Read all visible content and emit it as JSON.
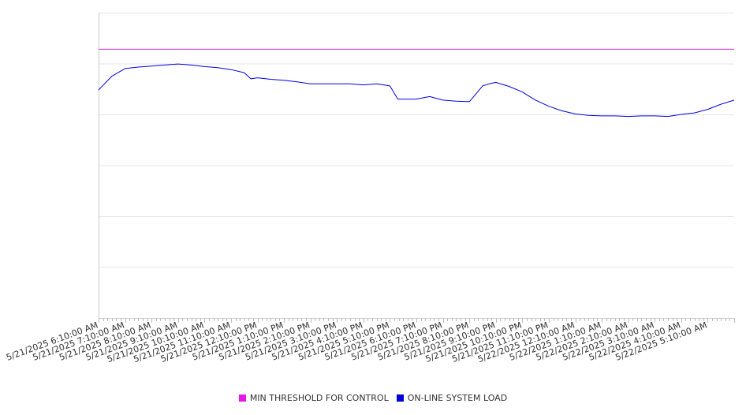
{
  "chart_data": {
    "type": "line",
    "title": "",
    "xlabel": "",
    "ylabel": "",
    "ylim": [
      0,
      6
    ],
    "y_ticks": [
      0,
      1,
      2,
      3,
      4,
      5,
      6
    ],
    "y_tick_labels_visible": false,
    "grid": true,
    "legend_position": "bottom-center",
    "x_tick_labels": [
      "5/21/2025 6:10:00 AM",
      "5/21/2025 7:10:00 AM",
      "5/21/2025 8:10:00 AM",
      "5/21/2025 9:10:00 AM",
      "5/21/2025 10:10:00 AM",
      "5/21/2025 11:10:00 AM",
      "5/21/2025 12:10:00 PM",
      "5/21/2025 1:10:00 PM",
      "5/21/2025 2:10:00 PM",
      "5/21/2025 3:10:00 PM",
      "5/21/2025 4:10:00 PM",
      "5/21/2025 5:10:00 PM",
      "5/21/2025 6:10:00 PM",
      "5/21/2025 7:10:00 PM",
      "5/21/2025 8:10:00 PM",
      "5/21/2025 9:10:00 PM",
      "5/21/2025 10:10:00 PM",
      "5/21/2025 11:10:00 PM",
      "5/22/2025 12:10:00 AM",
      "5/22/2025 1:10:00 AM",
      "5/22/2025 2:10:00 AM",
      "5/22/2025 3:10:00 AM",
      "5/22/2025 4:10:00 AM",
      "5/22/2025 5:10:00 AM"
    ],
    "x_range_hours": [
      0,
      24
    ],
    "series": [
      {
        "name": "MIN THRESHOLD FOR CONTROL",
        "color": "#e617e6",
        "x": [
          0,
          24
        ],
        "y": [
          5.28,
          5.28
        ]
      },
      {
        "name": "ON-LINE SYSTEM LOAD",
        "color": "#0000dd",
        "x": [
          0,
          0.5,
          1,
          1.5,
          2,
          2.5,
          3,
          3.5,
          4,
          4.5,
          5,
          5.5,
          5.75,
          6,
          6.5,
          7,
          7.5,
          8,
          8.5,
          9,
          9.5,
          10,
          10.5,
          11,
          11.3,
          11.5,
          12,
          12.5,
          13,
          13.5,
          14,
          14.5,
          14.75,
          15,
          15.5,
          16,
          16.5,
          17,
          17.5,
          18,
          18.5,
          19,
          19.5,
          20,
          20.5,
          21,
          21.5,
          22,
          22.5,
          23,
          23.5,
          24
        ],
        "y": [
          4.48,
          4.75,
          4.9,
          4.93,
          4.95,
          4.97,
          4.99,
          4.97,
          4.94,
          4.92,
          4.88,
          4.82,
          4.7,
          4.72,
          4.69,
          4.67,
          4.64,
          4.6,
          4.6,
          4.6,
          4.6,
          4.58,
          4.6,
          4.56,
          4.3,
          4.3,
          4.3,
          4.35,
          4.28,
          4.26,
          4.25,
          4.56,
          4.6,
          4.63,
          4.55,
          4.44,
          4.28,
          4.16,
          4.07,
          4.01,
          3.98,
          3.97,
          3.97,
          3.96,
          3.97,
          3.97,
          3.96,
          4.0,
          4.03,
          4.1,
          4.2,
          4.28
        ]
      }
    ]
  }
}
